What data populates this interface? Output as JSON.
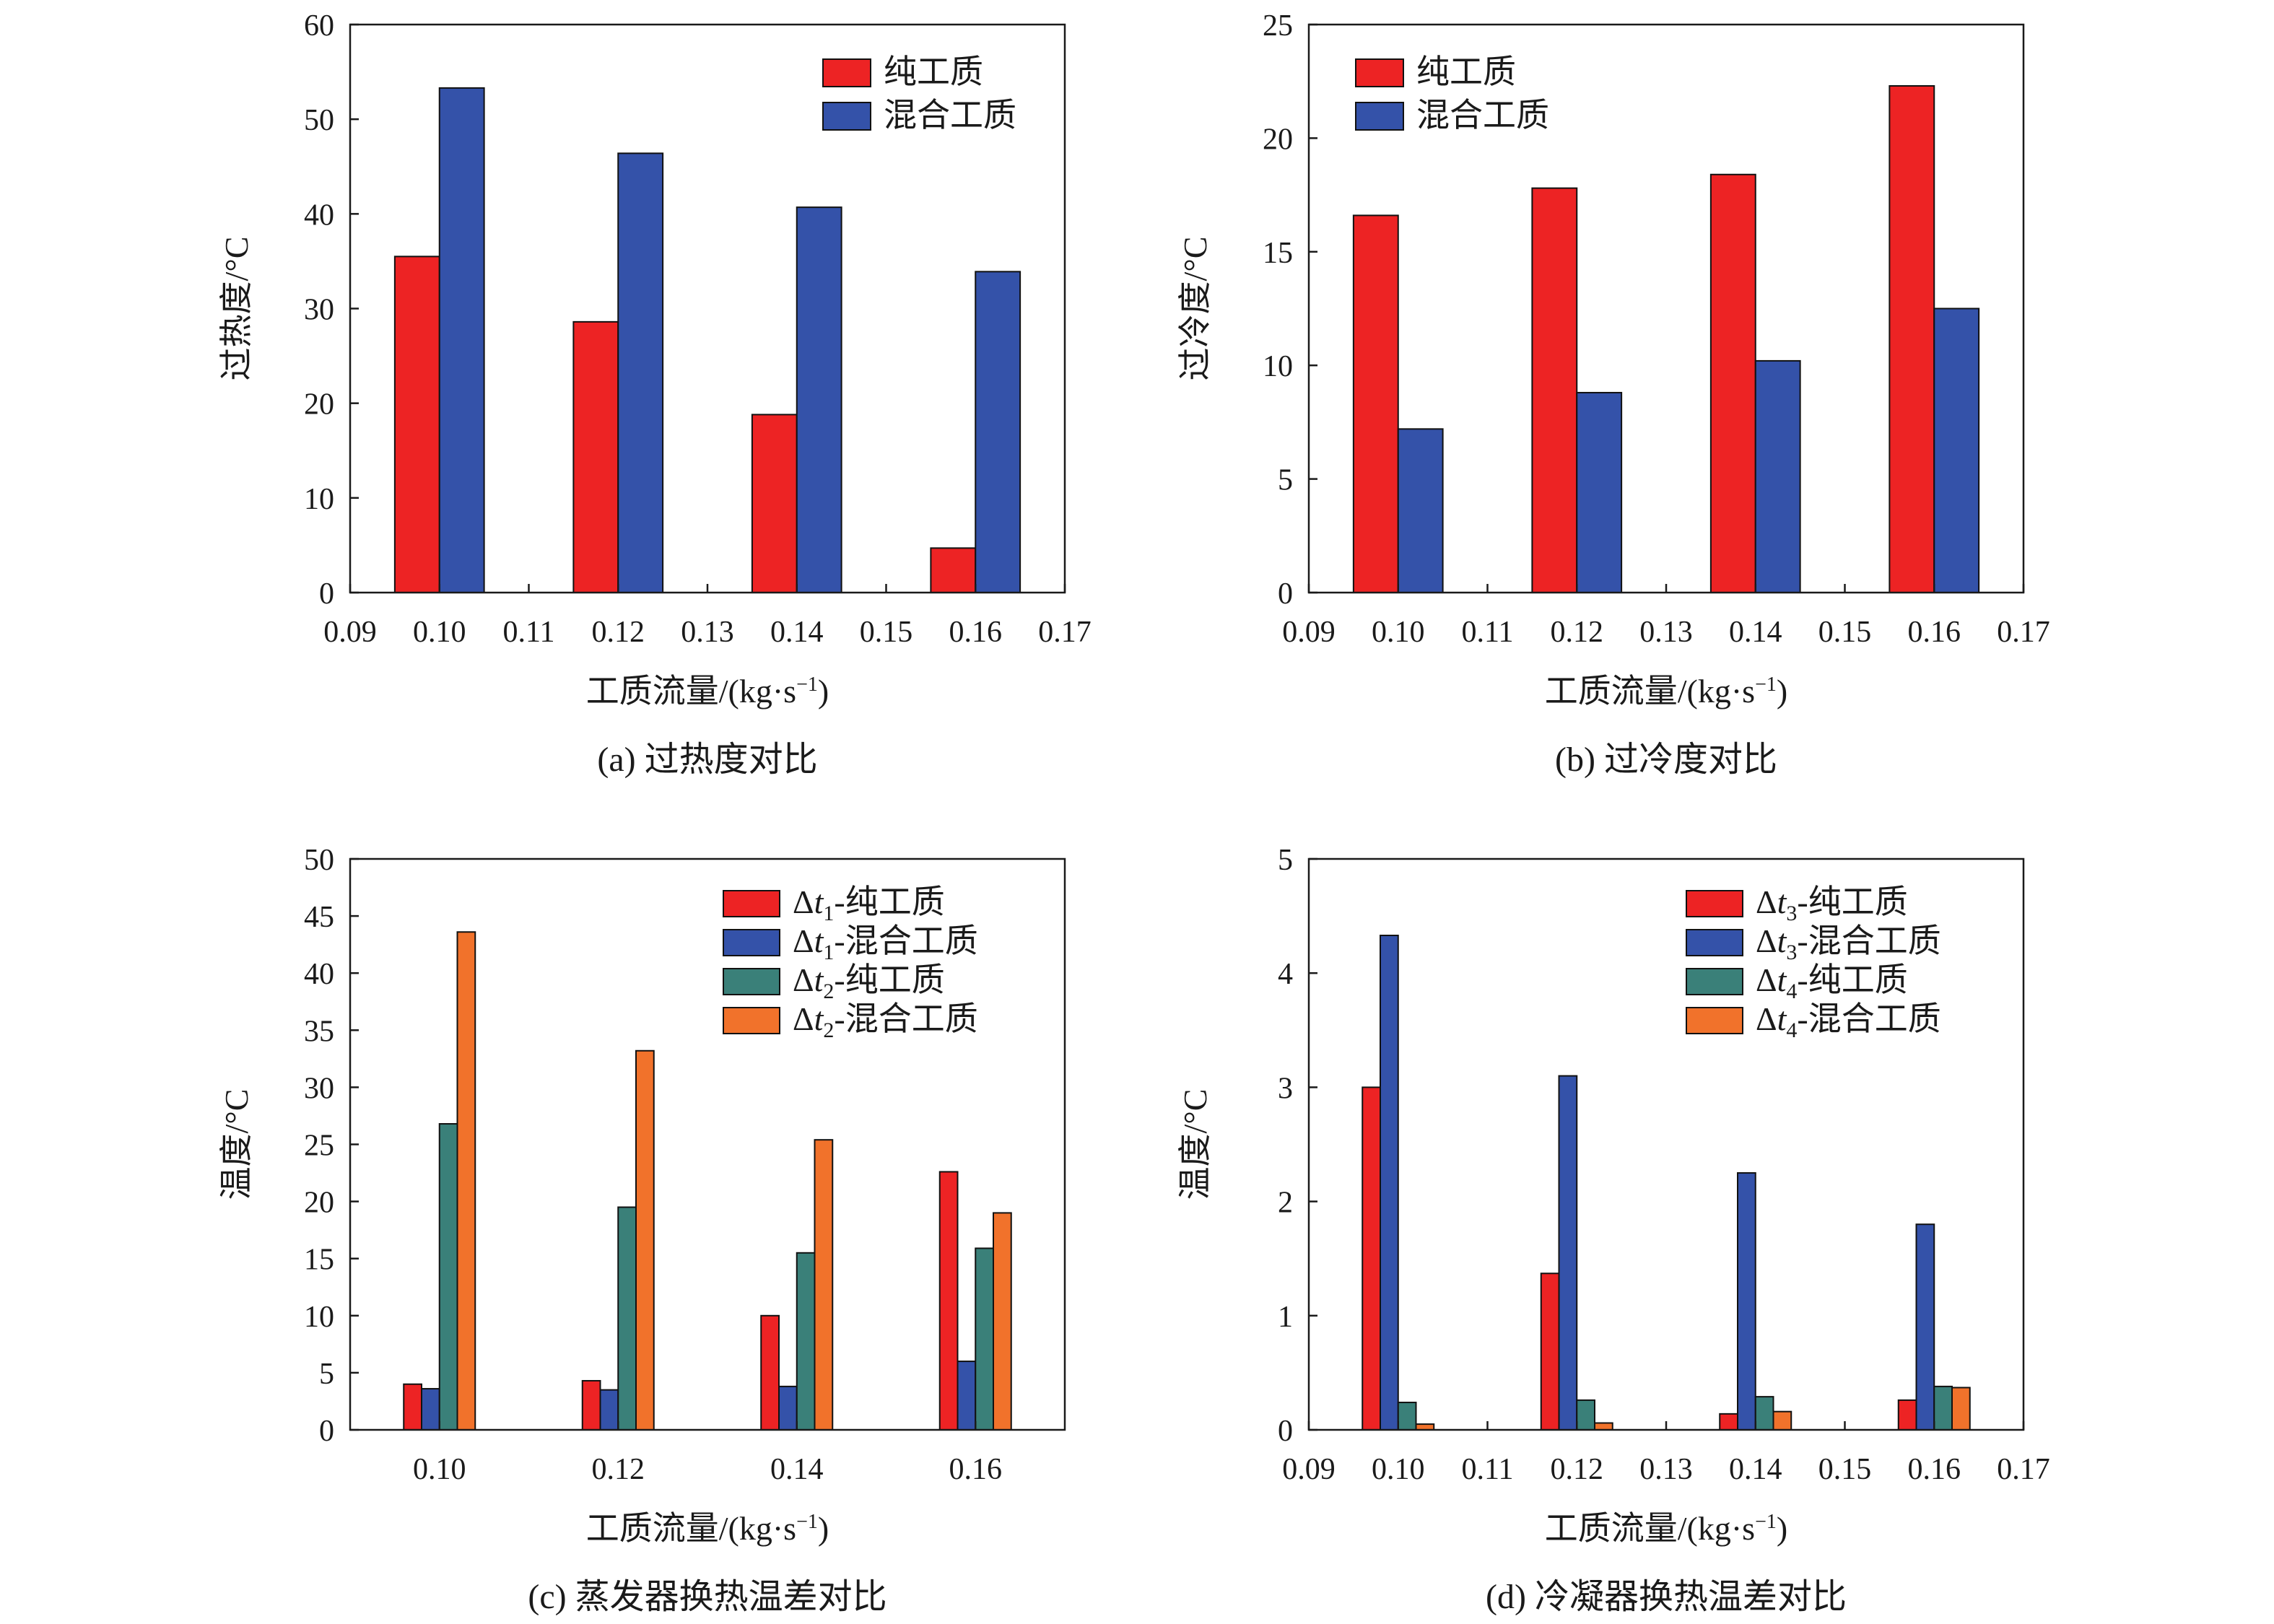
{
  "colors": {
    "red": "#ED2324",
    "blue": "#3452A9",
    "teal": "#3A8079",
    "orange": "#F1722B",
    "axis": "#1a1a1a"
  },
  "chart_data": [
    {
      "id": "a",
      "type": "bar",
      "caption": "(a) 过热度对比",
      "xlabel": "工质流量/(kg·s⁻¹)",
      "ylabel": "过热度/°C",
      "xlim": [
        0.09,
        0.17
      ],
      "xticks": [
        "0.09",
        "0.10",
        "0.11",
        "0.12",
        "0.13",
        "0.14",
        "0.15",
        "0.16",
        "0.17"
      ],
      "ylim": [
        0,
        60
      ],
      "yticks": [
        "0",
        "10",
        "20",
        "30",
        "40",
        "50",
        "60"
      ],
      "x": [
        0.1,
        0.12,
        0.14,
        0.16
      ],
      "bar_width": 0.005,
      "legend": "top-right",
      "series": [
        {
          "name": "纯工质",
          "color": "red",
          "values": [
            35.5,
            28.6,
            18.8,
            4.7
          ]
        },
        {
          "name": "混合工质",
          "color": "blue",
          "values": [
            53.3,
            46.4,
            40.7,
            33.9
          ]
        }
      ]
    },
    {
      "id": "b",
      "type": "bar",
      "caption": "(b) 过冷度对比",
      "xlabel": "工质流量/(kg·s⁻¹)",
      "ylabel": "过冷度/°C",
      "xlim": [
        0.09,
        0.17
      ],
      "xticks": [
        "0.09",
        "0.10",
        "0.11",
        "0.12",
        "0.13",
        "0.14",
        "0.15",
        "0.16",
        "0.17"
      ],
      "ylim": [
        0,
        25
      ],
      "yticks": [
        "0",
        "5",
        "10",
        "15",
        "20",
        "25"
      ],
      "x": [
        0.1,
        0.12,
        0.14,
        0.16
      ],
      "bar_width": 0.005,
      "legend": "top-left",
      "series": [
        {
          "name": "纯工质",
          "color": "red",
          "values": [
            16.6,
            17.8,
            18.4,
            22.3
          ]
        },
        {
          "name": "混合工质",
          "color": "blue",
          "values": [
            7.2,
            8.8,
            10.2,
            12.5
          ]
        }
      ]
    },
    {
      "id": "c",
      "type": "bar",
      "caption": "(c) 蒸发器换热温差对比",
      "xlabel": "工质流量/(kg·s⁻¹)",
      "ylabel": "温度/°C",
      "xlim": [
        0.09,
        0.17
      ],
      "xticks": [
        "0.10",
        "0.12",
        "0.14",
        "0.16"
      ],
      "ylim": [
        0,
        50
      ],
      "yticks": [
        "0",
        "5",
        "10",
        "15",
        "20",
        "25",
        "30",
        "35",
        "40",
        "45",
        "50"
      ],
      "x": [
        0.1,
        0.12,
        0.14,
        0.16
      ],
      "bar_width": 0.002,
      "legend": "top-right",
      "series": [
        {
          "name": "Δt1-纯工质",
          "color": "red",
          "values": [
            4.0,
            4.3,
            10.0,
            22.6
          ]
        },
        {
          "name": "Δt1-混合工质",
          "color": "blue",
          "values": [
            3.6,
            3.5,
            3.8,
            6.0
          ]
        },
        {
          "name": "Δt2-纯工质",
          "color": "teal",
          "values": [
            26.8,
            19.5,
            15.5,
            15.9
          ]
        },
        {
          "name": "Δt2-混合工质",
          "color": "orange",
          "values": [
            43.6,
            33.2,
            25.4,
            19.0
          ]
        }
      ]
    },
    {
      "id": "d",
      "type": "bar",
      "caption": "(d) 冷凝器换热温差对比",
      "xlabel": "工质流量/(kg·s⁻¹)",
      "ylabel": "温度/°C",
      "xlim": [
        0.09,
        0.17
      ],
      "xticks": [
        "0.09",
        "0.10",
        "0.11",
        "0.12",
        "0.13",
        "0.14",
        "0.15",
        "0.16",
        "0.17"
      ],
      "ylim": [
        0,
        5
      ],
      "yticks": [
        "0",
        "1",
        "2",
        "3",
        "4",
        "5"
      ],
      "x": [
        0.1,
        0.12,
        0.14,
        0.16
      ],
      "bar_width": 0.002,
      "legend": "top-right",
      "series": [
        {
          "name": "Δt3-纯工质",
          "color": "red",
          "values": [
            3.0,
            1.37,
            0.14,
            0.26
          ]
        },
        {
          "name": "Δt3-混合工质",
          "color": "blue",
          "values": [
            4.33,
            3.1,
            2.25,
            1.8
          ]
        },
        {
          "name": "Δt4-纯工质",
          "color": "teal",
          "values": [
            0.24,
            0.26,
            0.29,
            0.38
          ]
        },
        {
          "name": "Δt4-混合工质",
          "color": "orange",
          "values": [
            0.05,
            0.06,
            0.16,
            0.37
          ]
        }
      ]
    }
  ]
}
